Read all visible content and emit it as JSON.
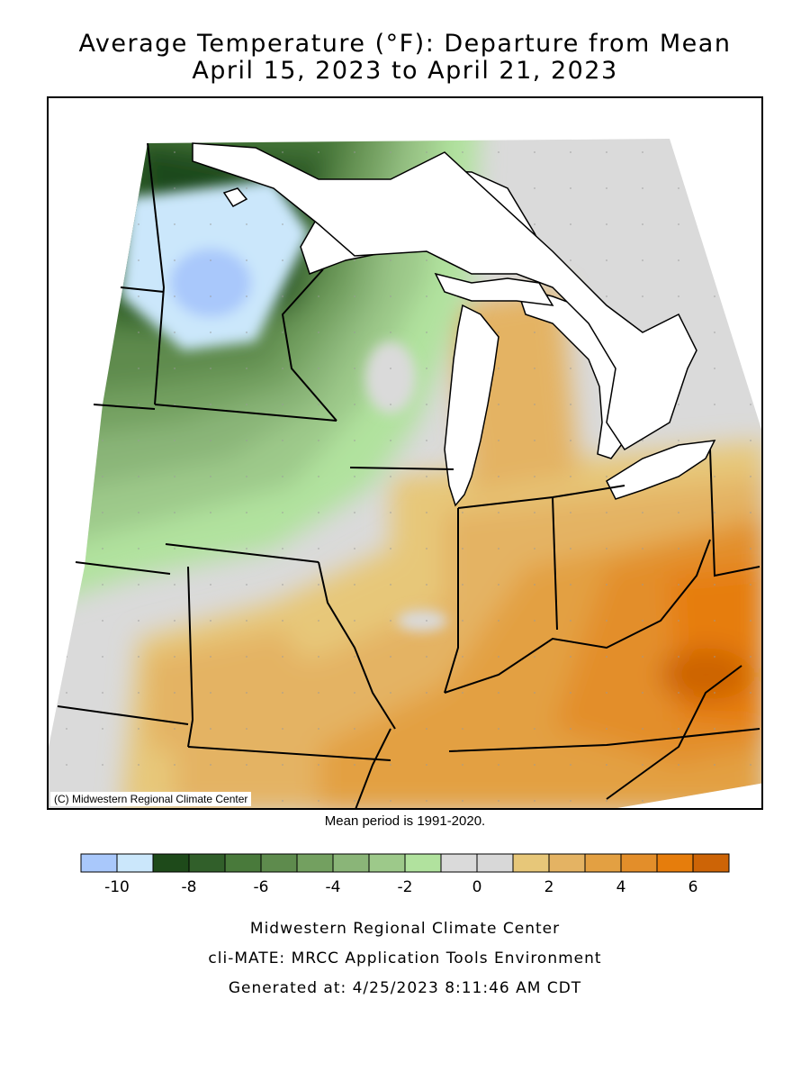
{
  "title": {
    "line1": "Average Temperature (°F): Departure from Mean",
    "line2": "April 15, 2023 to April 21, 2023"
  },
  "map": {
    "copyright": "(C) Midwestern Regional Climate Center",
    "mean_period": "Mean period is 1991-2020."
  },
  "legend": {
    "bins": [
      {
        "range": [
          -11,
          -10
        ],
        "color": "#a9c8fb"
      },
      {
        "range": [
          -10,
          -9
        ],
        "color": "#cbe7fb"
      },
      {
        "range": [
          -9,
          -8
        ],
        "color": "#1e4a1a"
      },
      {
        "range": [
          -8,
          -7
        ],
        "color": "#315f2a"
      },
      {
        "range": [
          -7,
          -6
        ],
        "color": "#497a3b"
      },
      {
        "range": [
          -6,
          -5
        ],
        "color": "#5e8b4d"
      },
      {
        "range": [
          -5,
          -4
        ],
        "color": "#73a060"
      },
      {
        "range": [
          -4,
          -3
        ],
        "color": "#8ab578"
      },
      {
        "range": [
          -3,
          -2
        ],
        "color": "#9dc98a"
      },
      {
        "range": [
          -2,
          -1
        ],
        "color": "#b1e29e"
      },
      {
        "range": [
          -1,
          0
        ],
        "color": "#dadada"
      },
      {
        "range": [
          0,
          1
        ],
        "color": "#d8d8d8"
      },
      {
        "range": [
          1,
          2
        ],
        "color": "#e7c779"
      },
      {
        "range": [
          2,
          3
        ],
        "color": "#e4b363"
      },
      {
        "range": [
          3,
          4
        ],
        "color": "#e3a042"
      },
      {
        "range": [
          4,
          5
        ],
        "color": "#e38e2a"
      },
      {
        "range": [
          5,
          6
        ],
        "color": "#e67d0c"
      },
      {
        "range": [
          6,
          7
        ],
        "color": "#cd6406"
      }
    ],
    "tick_labels": [
      "-10",
      "-8",
      "-6",
      "-4",
      "-2",
      "0",
      "2",
      "4",
      "6"
    ]
  },
  "footer": {
    "org": "Midwestern Regional Climate Center",
    "tool": "cli-MATE: MRCC Application Tools Environment",
    "generated": "Generated at: 4/25/2023 8:11:46 AM CDT"
  }
}
